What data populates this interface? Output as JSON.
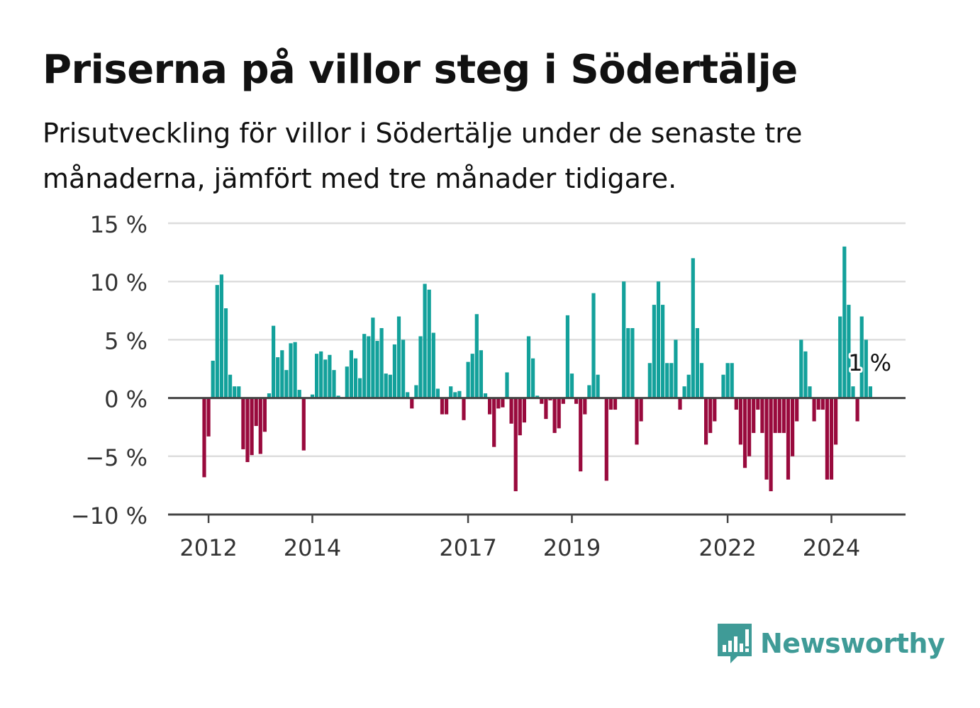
{
  "title": "Priserna på villor steg i Södertälje",
  "subtitle": "Prisutveckling för villor i Södertälje under de senaste tre månaderna, jämfört med tre månader tidigare.",
  "colors": {
    "positive": "#13a19b",
    "negative": "#990a3d",
    "grid": "#dddddd",
    "axis": "#444444",
    "brand": "#3f9b97"
  },
  "logo": {
    "text": "Newsworthy",
    "icon": "bar-chart-speech-bubble-icon"
  },
  "chart_data": {
    "type": "bar",
    "ylim": [
      -10,
      15
    ],
    "y_ticks": [
      {
        "value": 15,
        "label": "15 %"
      },
      {
        "value": 10,
        "label": "10 %"
      },
      {
        "value": 5,
        "label": "5 %"
      },
      {
        "value": 0,
        "label": "0 %"
      },
      {
        "value": -5,
        "label": "−5 %"
      },
      {
        "value": -10,
        "label": "−10 %"
      }
    ],
    "x_ticks": [
      "2012",
      "2014",
      "2017",
      "2019",
      "2022",
      "2024"
    ],
    "grid": true,
    "annotation": "1 %",
    "series": [
      {
        "start": "2011-12",
        "values": [
          -6.8,
          -3.3,
          3.2,
          9.7,
          10.6,
          7.7,
          2,
          1,
          1,
          -4.4,
          -5.5,
          -4.9,
          -2.4,
          -4.8,
          -2.9,
          0.4,
          6.2,
          3.5,
          4.1,
          2.4,
          4.7,
          4.8,
          0.7,
          -4.5,
          0,
          0.3,
          3.8,
          4,
          3.3,
          3.7,
          2.4,
          0.2,
          0,
          2.7,
          4.1,
          3.4,
          1.7,
          5.5,
          5.3,
          6.9,
          4.9,
          6,
          2.1,
          2,
          4.6,
          7,
          5,
          0.5,
          -0.9,
          1.1,
          5.3,
          9.8,
          9.3,
          5.6,
          0.8,
          -1.4,
          -1.4,
          1,
          0.5,
          0.6,
          -1.9,
          3.1,
          3.8,
          7.2,
          4.1,
          0.4,
          -1.4,
          -4.2,
          -0.9,
          -0.8,
          2.2,
          -2.2,
          -8,
          -3.2,
          -2.1,
          5.3,
          3.4,
          0.2,
          -0.5,
          -1.8,
          -0.2,
          -3,
          -2.6,
          -0.5,
          7.1,
          2.1,
          -0.5,
          -6.3,
          -1.4,
          1.1,
          9,
          2,
          0,
          -7.1,
          -1,
          -1,
          0,
          10,
          6,
          6,
          -4,
          -2,
          0,
          3,
          8,
          10,
          8,
          3,
          3,
          5,
          -1,
          1,
          2,
          12,
          6,
          3,
          -4,
          -3,
          -2,
          0,
          2,
          3,
          3,
          -1,
          -4,
          -6,
          -5,
          -3,
          -1,
          -3,
          -7,
          -8,
          -3,
          -3,
          -3,
          -7,
          -5,
          -2,
          5,
          4,
          1,
          -2,
          -1,
          -1,
          -7,
          -7,
          -4,
          7,
          13,
          8,
          1,
          -2,
          7,
          5,
          1
        ]
      }
    ]
  }
}
